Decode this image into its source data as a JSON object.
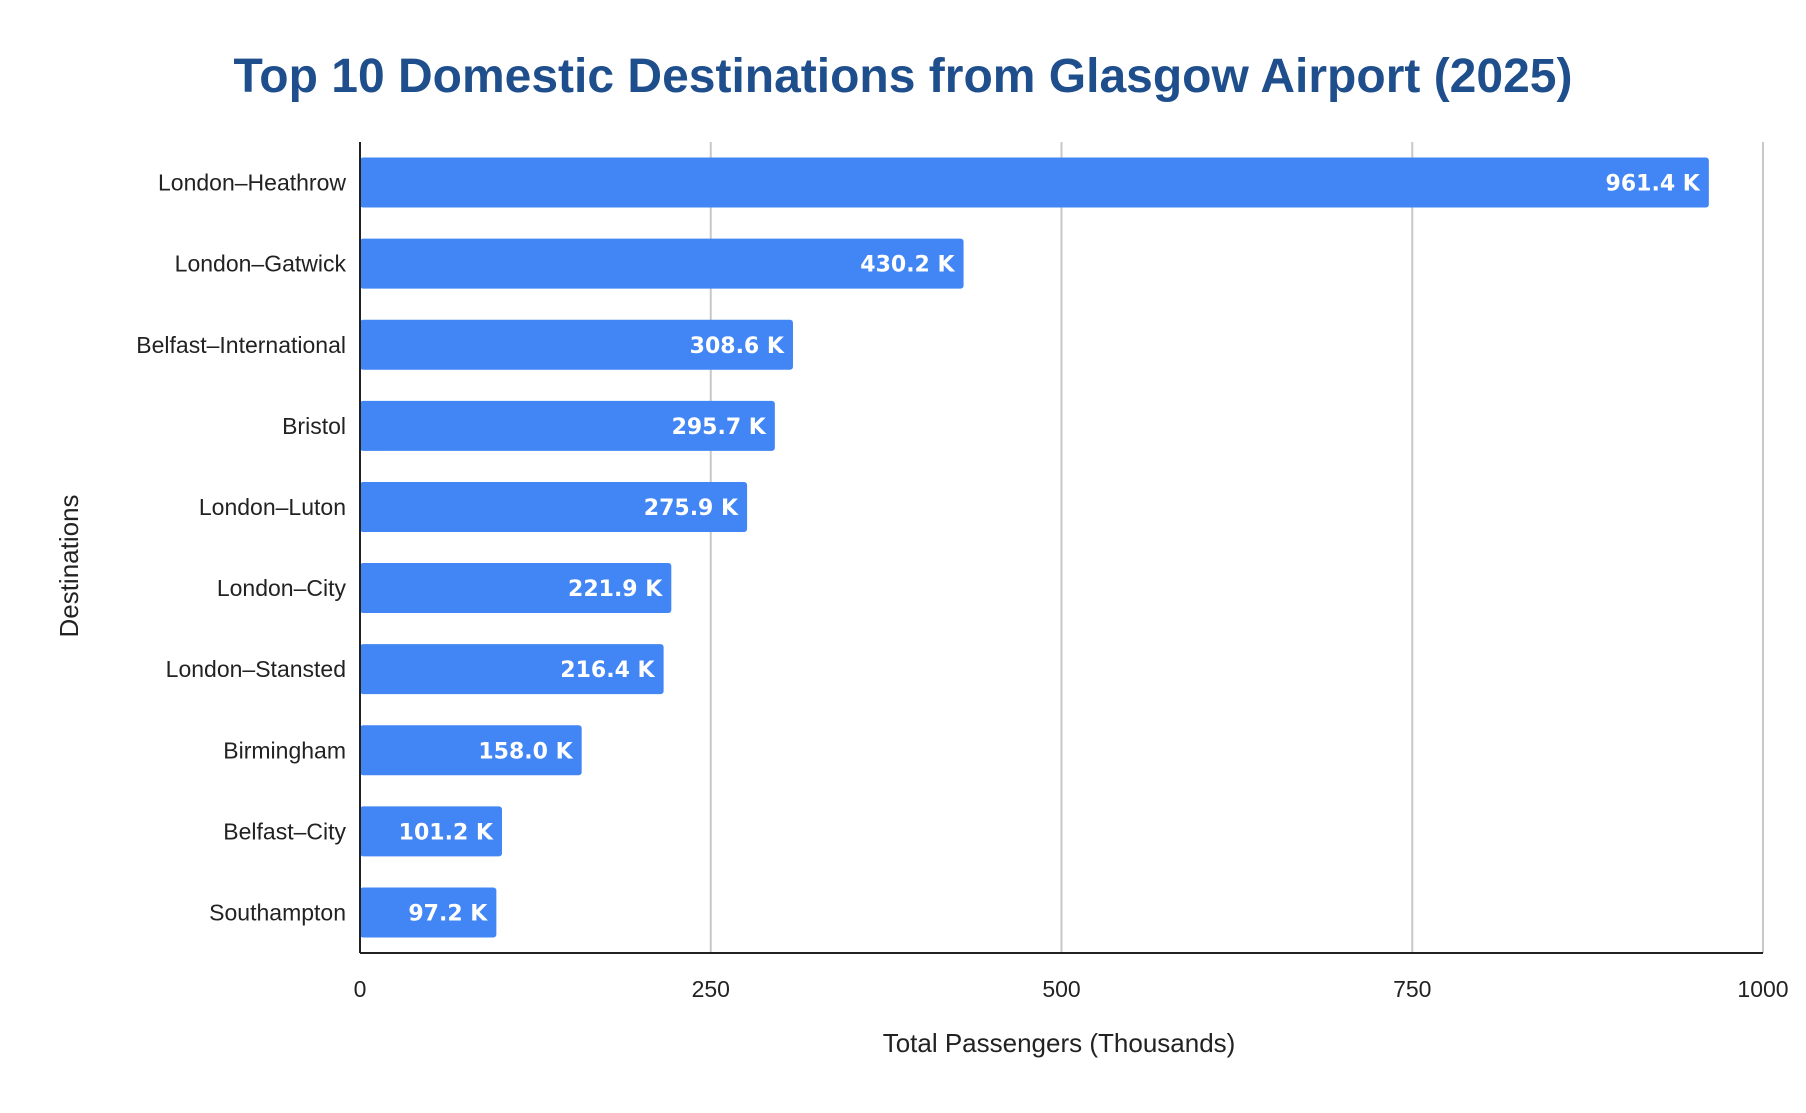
{
  "chart_data": {
    "type": "bar",
    "orientation": "horizontal",
    "title": "Top 10 Domestic Destinations from Glasgow Airport (2025)",
    "xlabel": "Total Passengers (Thousands)",
    "ylabel": "Destinations",
    "xlim": [
      0,
      1000
    ],
    "xticks": [
      0,
      250,
      500,
      750,
      1000
    ],
    "xtick_labels": [
      "0",
      "250",
      "500",
      "750",
      "1000"
    ],
    "grid": true,
    "legend": "none",
    "bar_color": "#4285f4",
    "categories": [
      "London–Heathrow",
      "London–Gatwick",
      "Belfast–International",
      "Bristol",
      "London–Luton",
      "London–City",
      "London–Stansted",
      "Birmingham",
      "Belfast–City",
      "Southampton"
    ],
    "values": [
      961.4,
      430.2,
      308.6,
      295.7,
      275.9,
      221.9,
      216.4,
      158.0,
      101.2,
      97.2
    ],
    "data_labels": [
      "961.4 K",
      "430.2 K",
      "308.6 K",
      "295.7 K",
      "275.9 K",
      "221.9 K",
      "216.4 K",
      "158.0 K",
      "101.2 K",
      "97.2 K"
    ]
  }
}
